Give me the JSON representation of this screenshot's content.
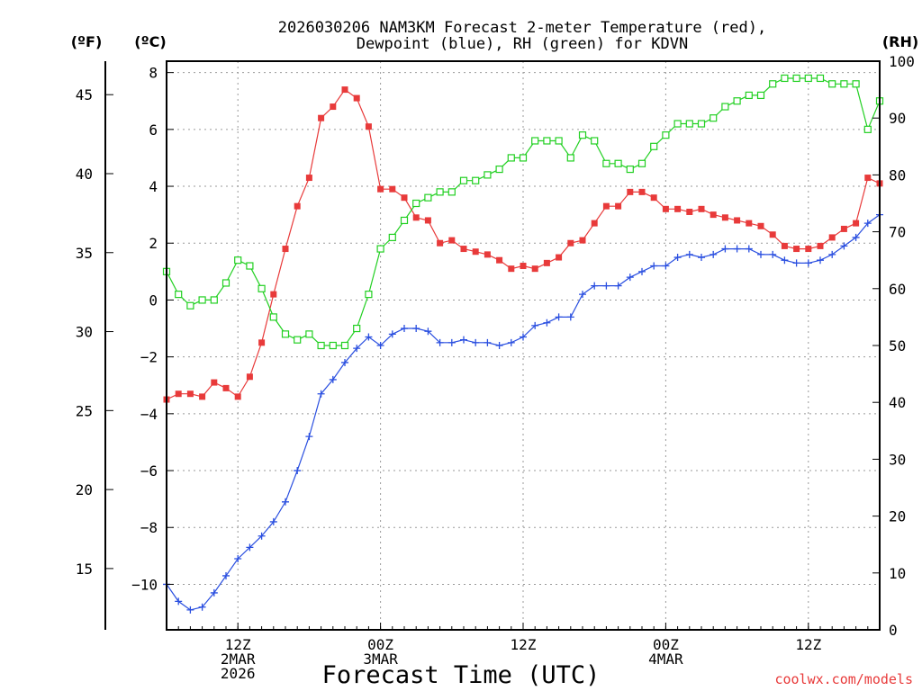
{
  "chart_data": {
    "type": "line",
    "title_line1": "2026030206 NAM3KM Forecast 2-meter Temperature (red),",
    "title_line2": "Dewpoint (blue), RH (green) for KDVN",
    "xlabel": "Forecast Time (UTC)",
    "credit": "coolwx.com/models",
    "units": {
      "fahrenheit": "(ºF)",
      "celsius": "(ºC)",
      "rh": "(RH)"
    },
    "x_hours": [
      0,
      1,
      2,
      3,
      4,
      5,
      6,
      7,
      8,
      9,
      10,
      11,
      12,
      13,
      14,
      15,
      16,
      17,
      18,
      19,
      20,
      21,
      22,
      23,
      24,
      25,
      26,
      27,
      28,
      29,
      30,
      31,
      32,
      33,
      34,
      35,
      36,
      37,
      38,
      39,
      40,
      41,
      42,
      43,
      44,
      45,
      46,
      47,
      48,
      49,
      50,
      51,
      52,
      53,
      54,
      55,
      56,
      57,
      58,
      59,
      60
    ],
    "x_ticks": [
      {
        "hour": 6,
        "lines": [
          "12Z",
          "2MAR",
          "2026"
        ]
      },
      {
        "hour": 18,
        "lines": [
          "00Z",
          "3MAR"
        ]
      },
      {
        "hour": 30,
        "lines": [
          "12Z"
        ]
      },
      {
        "hour": 42,
        "lines": [
          "00Z",
          "4MAR"
        ]
      },
      {
        "hour": 54,
        "lines": [
          "12Z"
        ]
      }
    ],
    "xlim": [
      0,
      60
    ],
    "ylim_celsius": [
      -11.6,
      8.4
    ],
    "ylim_rh": [
      0,
      100
    ],
    "yticks_celsius": [
      -10,
      -8,
      -6,
      -4,
      -2,
      0,
      2,
      4,
      6,
      8
    ],
    "yticks_celsius_labels": [
      "−10",
      "−8",
      "−6",
      "−4",
      "−2",
      "0",
      "2",
      "4",
      "6",
      "8"
    ],
    "yticks_fahrenheit": [
      15,
      20,
      25,
      30,
      35,
      40,
      45
    ],
    "yticks_rh": [
      0,
      10,
      20,
      30,
      40,
      50,
      60,
      70,
      80,
      90,
      100
    ],
    "grid": true,
    "series": [
      {
        "name": "2-meter Temperature",
        "unit": "celsius",
        "color": "#e83a3a",
        "marker": "filled-square",
        "values": [
          -3.5,
          -3.3,
          -3.3,
          -3.4,
          -2.9,
          -3.1,
          -3.4,
          -2.7,
          -1.5,
          0.2,
          1.8,
          3.3,
          4.3,
          6.4,
          6.8,
          7.4,
          7.1,
          6.1,
          3.9,
          3.9,
          3.6,
          2.9,
          2.8,
          2.0,
          2.1,
          1.8,
          1.7,
          1.6,
          1.4,
          1.1,
          1.2,
          1.1,
          1.3,
          1.5,
          2.0,
          2.1,
          2.7,
          3.3,
          3.3,
          3.8,
          3.8,
          3.6,
          3.2,
          3.2,
          3.1,
          3.2,
          3.0,
          2.9,
          2.8,
          2.7,
          2.6,
          2.3,
          1.9,
          1.8,
          1.8,
          1.9,
          2.2,
          2.5,
          2.7,
          4.3,
          4.1
        ]
      },
      {
        "name": "Dewpoint",
        "unit": "celsius",
        "color": "#2a4fe0",
        "marker": "plus",
        "values": [
          -10.0,
          -10.6,
          -10.9,
          -10.8,
          -10.3,
          -9.7,
          -9.1,
          -8.7,
          -8.3,
          -7.8,
          -7.1,
          -6.0,
          -4.8,
          -3.3,
          -2.8,
          -2.2,
          -1.7,
          -1.3,
          -1.6,
          -1.2,
          -1.0,
          -1.0,
          -1.1,
          -1.5,
          -1.5,
          -1.4,
          -1.5,
          -1.5,
          -1.6,
          -1.5,
          -1.3,
          -0.9,
          -0.8,
          -0.6,
          -0.6,
          0.2,
          0.5,
          0.5,
          0.5,
          0.8,
          1.0,
          1.2,
          1.2,
          1.5,
          1.6,
          1.5,
          1.6,
          1.8,
          1.8,
          1.8,
          1.6,
          1.6,
          1.4,
          1.3,
          1.3,
          1.4,
          1.6,
          1.9,
          2.2,
          2.7,
          3.0
        ]
      },
      {
        "name": "RH",
        "unit": "rh",
        "color": "#22d022",
        "marker": "open-square",
        "values": [
          63,
          59,
          57,
          58,
          58,
          61,
          65,
          64,
          60,
          55,
          52,
          51,
          52,
          50,
          50,
          50,
          53,
          59,
          67,
          69,
          72,
          75,
          76,
          77,
          77,
          79,
          79,
          80,
          81,
          83,
          83,
          86,
          86,
          86,
          83,
          87,
          86,
          82,
          82,
          81,
          82,
          85,
          87,
          89,
          89,
          89,
          90,
          92,
          93,
          94,
          94,
          96,
          97,
          97,
          97,
          97,
          96,
          96,
          96,
          88,
          93
        ]
      }
    ]
  }
}
